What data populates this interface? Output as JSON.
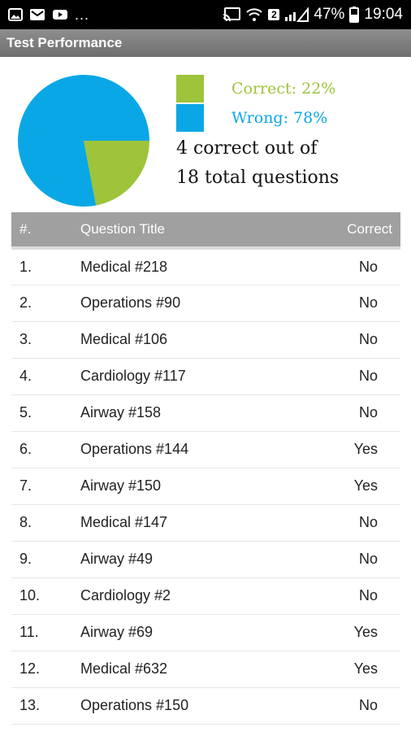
{
  "status_bar": {
    "dots": "...",
    "sim_badge": "2",
    "battery": "47%",
    "time": "19:04",
    "icons": [
      "gallery-icon",
      "gmail-icon",
      "youtube-icon",
      "cast-icon",
      "wifi-icon",
      "signal-icon",
      "battery-icon"
    ]
  },
  "app_bar": {
    "title": "Test Performance"
  },
  "summary": {
    "correct_legend": "Correct: 22%",
    "wrong_legend": "Wrong: 78%",
    "line1": "4 correct out of",
    "line2": "18 total questions",
    "colors": {
      "correct": "#9dc43a",
      "wrong": "#0aa7e6"
    }
  },
  "chart_data": {
    "type": "pie",
    "slices": [
      {
        "label": "Correct",
        "value": 22,
        "color": "#9dc43a"
      },
      {
        "label": "Wrong",
        "value": 78,
        "color": "#0aa7e6"
      }
    ]
  },
  "table": {
    "headers": {
      "num": "#.",
      "title": "Question Title",
      "correct": "Correct"
    },
    "rows": [
      {
        "num": "1.",
        "title": "Medical #218",
        "correct": "No"
      },
      {
        "num": "2.",
        "title": "Operations #90",
        "correct": "No"
      },
      {
        "num": "3.",
        "title": "Medical #106",
        "correct": "No"
      },
      {
        "num": "4.",
        "title": "Cardiology #117",
        "correct": "No"
      },
      {
        "num": "5.",
        "title": "Airway #158",
        "correct": "No"
      },
      {
        "num": "6.",
        "title": "Operations #144",
        "correct": "Yes"
      },
      {
        "num": "7.",
        "title": "Airway #150",
        "correct": "Yes"
      },
      {
        "num": "8.",
        "title": "Medical #147",
        "correct": "No"
      },
      {
        "num": "9.",
        "title": "Airway #49",
        "correct": "No"
      },
      {
        "num": "10.",
        "title": "Cardiology #2",
        "correct": "No"
      },
      {
        "num": "11.",
        "title": "Airway #69",
        "correct": "Yes"
      },
      {
        "num": "12.",
        "title": "Medical #632",
        "correct": "Yes"
      },
      {
        "num": "13.",
        "title": "Operations #150",
        "correct": "No"
      }
    ]
  }
}
